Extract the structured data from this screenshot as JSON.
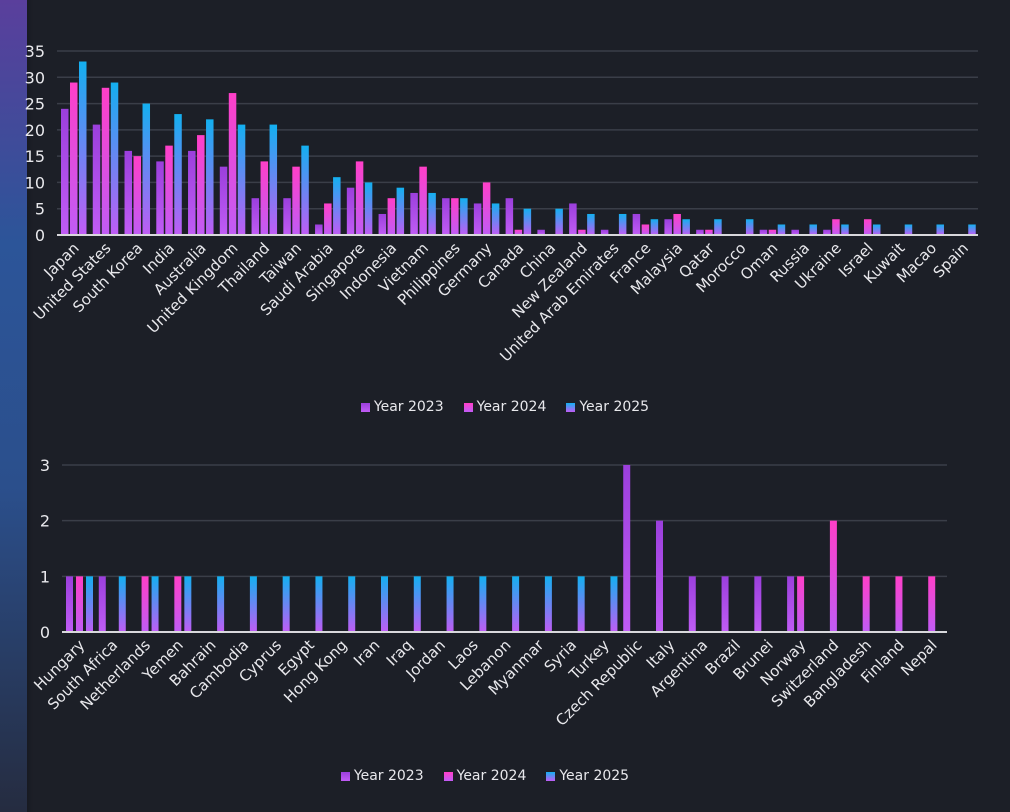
{
  "chart_data": [
    {
      "type": "bar",
      "title": "",
      "xlabel": "",
      "ylabel": "",
      "ylim": [
        0,
        35
      ],
      "yticks": [
        0,
        5,
        10,
        15,
        20,
        25,
        30,
        35
      ],
      "grid": true,
      "legend": "bottom-center",
      "categories": [
        "Japan",
        "United States",
        "South Korea",
        "India",
        "Australia",
        "United Kingdom",
        "Thailand",
        "Taiwan",
        "Saudi Arabia",
        "Singapore",
        "Indonesia",
        "Vietnam",
        "Philippines",
        "Germany",
        "Canada",
        "China",
        "New Zealand",
        "United Arab Emirates",
        "France",
        "Malaysia",
        "Qatar",
        "Morocco",
        "Oman",
        "Russia",
        "Ukraine",
        "Israel",
        "Kuwait",
        "Macao",
        "Spain"
      ],
      "series": [
        {
          "name": "Year 2023",
          "values": [
            24,
            21,
            16,
            14,
            16,
            13,
            7,
            7,
            2,
            9,
            4,
            8,
            7,
            6,
            7,
            1,
            6,
            1,
            4,
            3,
            1,
            0,
            1,
            1,
            1,
            0,
            0,
            0,
            0
          ]
        },
        {
          "name": "Year 2024",
          "values": [
            29,
            28,
            15,
            17,
            19,
            27,
            14,
            13,
            6,
            14,
            7,
            13,
            7,
            10,
            1,
            0,
            1,
            0,
            2,
            4,
            1,
            0,
            1,
            0,
            3,
            3,
            0,
            0,
            0
          ]
        },
        {
          "name": "Year 2025",
          "values": [
            33,
            29,
            25,
            23,
            22,
            21,
            21,
            17,
            11,
            10,
            9,
            8,
            7,
            6,
            5,
            5,
            4,
            4,
            3,
            3,
            3,
            3,
            2,
            2,
            2,
            2,
            2,
            2,
            2
          ]
        }
      ]
    },
    {
      "type": "bar",
      "title": "",
      "xlabel": "",
      "ylabel": "",
      "ylim": [
        0,
        3
      ],
      "yticks": [
        0,
        1,
        2,
        3
      ],
      "grid": true,
      "legend": "bottom-center",
      "categories": [
        "Hungary",
        "South Africa",
        "Netherlands",
        "Yemen",
        "Bahrain",
        "Cambodia",
        "Cyprus",
        "Egypt",
        "Hong Kong",
        "Iran",
        "Iraq",
        "Jordan",
        "Laos",
        "Lebanon",
        "Myanmar",
        "Syria",
        "Turkey",
        "Czech Republic",
        "Italy",
        "Argentina",
        "Brazil",
        "Brunei",
        "Norway",
        "Switzerland",
        "Bangladesh",
        "Finland",
        "Nepal"
      ],
      "series": [
        {
          "name": "Year 2023",
          "values": [
            1,
            1,
            0,
            0,
            0,
            0,
            0,
            0,
            0,
            0,
            0,
            0,
            0,
            0,
            0,
            0,
            0,
            3,
            2,
            1,
            1,
            1,
            1,
            0,
            0,
            0,
            0
          ]
        },
        {
          "name": "Year 2024",
          "values": [
            1,
            0,
            1,
            1,
            0,
            0,
            0,
            0,
            0,
            0,
            0,
            0,
            0,
            0,
            0,
            0,
            0,
            0,
            0,
            0,
            0,
            0,
            1,
            2,
            1,
            1,
            1
          ]
        },
        {
          "name": "Year 2025",
          "values": [
            1,
            1,
            1,
            1,
            1,
            1,
            1,
            1,
            1,
            1,
            1,
            1,
            1,
            1,
            1,
            1,
            1,
            0,
            0,
            0,
            0,
            0,
            0,
            0,
            0,
            0,
            0
          ]
        }
      ]
    }
  ],
  "colors": {
    "year_2023_top": "#9b3fdc",
    "year_2024_top": "#ff3fc8",
    "year_2025_top": "#13b0f0",
    "bar_bottom": "#c05cf5",
    "grid": "#3a3e48",
    "axis": "#d8d8dc",
    "text": "#e8e8ec"
  },
  "legend": [
    "Year 2023",
    "Year 2024",
    "Year 2025"
  ]
}
